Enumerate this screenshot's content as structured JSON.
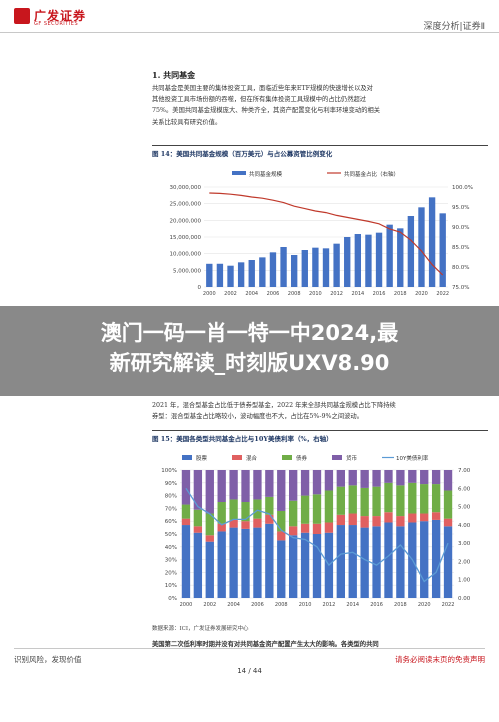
{
  "header": {
    "logo_cn": "广发证券",
    "logo_en": "GF SECURITIES",
    "report_type": "深度分析|证券Ⅱ"
  },
  "section": {
    "title": "1. 共同基金",
    "para_lines": [
      "共同基金是美国主要的集体投资工具，面临近些年来ETF规模的快速增长以及对",
      "其他投资工具市场份额的吞噬，但在所有集体投资工具规模中的占比仍然超过",
      "75%。美国共同基金规模庞大、种类齐全，其资产配置变化与利率环境变动的相关",
      "关系比较具有研究价值。"
    ]
  },
  "figure1": {
    "title": "图 14：美国共同基金规模（百万美元）与占公募资管比例变化"
  },
  "overlay": {
    "line1": "澳门一码一肖一特一中2024,最",
    "line2": "新研究解读_时刻版UXV8.90"
  },
  "mid": {
    "line1": "2021 年，混合型基金占比低于债券型基金，2022 年来全部共同基金规模占比下降持续",
    "line2": "券型：混合型基金占比略较小，波动幅度也不大，占比在5%-9%之间波动。"
  },
  "figure2": {
    "title": "图 15：美国各类型共同基金占比与10Y美债利率（%，右轴）"
  },
  "source2": "数据来源：ICI，广发证券发展研究中心",
  "bottom": {
    "line1": "美国第二次低利率时期并没有对共同基金资产配置产生太大的影响。各类型的共同",
    "line2": "基金几乎都是在各自的由基金市场发展方向，投资者偏好变化等决定的演变方向上"
  },
  "footer": {
    "left": "识别风险，发现价值",
    "right": "请务必阅读末页的免责声明",
    "page": "14 / 44"
  },
  "colors": {
    "brand_red": "#c8161d",
    "bar_blue": "#4472c4",
    "line_red": "#c0392b",
    "bond_green": "#70ad47",
    "money_purple": "#7f5fa8",
    "hybrid_red": "#e06060"
  },
  "chart_data": [
    {
      "type": "bar",
      "legend": [
        "共同基金规模",
        "共同基金占比（右轴）"
      ],
      "y_ticks": [
        "0",
        "5,000,000",
        "10,000,000",
        "15,000,000",
        "20,000,000",
        "25,000,000",
        "30,000,000"
      ],
      "y2_ticks": [
        "75.0%",
        "80.0%",
        "85.0%",
        "90.0%",
        "95.0%",
        "100.0%"
      ],
      "x_ticks": [
        "2000",
        "2002",
        "2004",
        "2006",
        "2008",
        "2010",
        "2012",
        "2014",
        "2016",
        "2018",
        "2020",
        "2022"
      ],
      "ylim": [
        0,
        30000000
      ],
      "y2lim": [
        75,
        100
      ],
      "series": [
        {
          "name": "共同基金规模",
          "values": [
            6960000,
            6970000,
            6390000,
            7400000,
            8100000,
            8890000,
            10400000,
            12000000,
            9600000,
            11100000,
            11800000,
            11600000,
            13000000,
            15000000,
            15900000,
            15700000,
            16300000,
            18700000,
            17600000,
            21300000,
            23900000,
            26900000,
            22100000
          ]
        },
        {
          "name": "共同基金占比（右轴）",
          "values": [
            98.5,
            98.4,
            98.2,
            97.9,
            97.5,
            97.2,
            96.7,
            96.1,
            95.2,
            94.6,
            94.0,
            93.6,
            92.9,
            92.4,
            91.9,
            91.4,
            90.8,
            89.5,
            88.7,
            86.7,
            84.0,
            80.6,
            78.0
          ]
        }
      ]
    },
    {
      "type": "bar",
      "legend": [
        "股票",
        "混合",
        "债券",
        "货币",
        "10Y美债利率"
      ],
      "y_ticks": [
        "0%",
        "10%",
        "20%",
        "30%",
        "40%",
        "50%",
        "60%",
        "70%",
        "80%",
        "90%",
        "100%"
      ],
      "y2_ticks": [
        "0.00",
        "1.00",
        "2.00",
        "3.00",
        "4.00",
        "5.00",
        "6.00",
        "7.00"
      ],
      "x_ticks": [
        "2000",
        "2002",
        "2004",
        "2006",
        "2008",
        "2010",
        "2012",
        "2014",
        "2016",
        "2018",
        "2020",
        "2022"
      ],
      "ylim": [
        0,
        100
      ],
      "y2lim": [
        0,
        7
      ],
      "series": [
        {
          "name": "股票",
          "values": [
            57,
            51,
            44,
            52,
            55,
            54,
            55,
            58,
            45,
            49,
            51,
            50,
            51,
            57,
            57,
            55,
            56,
            59,
            56,
            59,
            60,
            61,
            56
          ]
        },
        {
          "name": "混合",
          "values": [
            5,
            5,
            5,
            6,
            6,
            6,
            7,
            7,
            7,
            7,
            7,
            8,
            8,
            8,
            9,
            9,
            8,
            8,
            8,
            7,
            6,
            6,
            6
          ]
        },
        {
          "name": "债券",
          "values": [
            11,
            13,
            17,
            17,
            16,
            15,
            15,
            14,
            16,
            20,
            22,
            23,
            25,
            22,
            22,
            22,
            23,
            23,
            24,
            24,
            23,
            22,
            22
          ]
        },
        {
          "name": "货币",
          "values": [
            27,
            31,
            34,
            25,
            23,
            25,
            23,
            21,
            32,
            24,
            20,
            19,
            16,
            13,
            12,
            14,
            13,
            10,
            12,
            10,
            11,
            11,
            16
          ]
        },
        {
          "name": "10Y美债利率",
          "values": [
            6.0,
            5.0,
            4.6,
            4.0,
            4.3,
            4.3,
            4.8,
            4.6,
            3.7,
            3.3,
            3.2,
            2.8,
            1.8,
            2.4,
            2.5,
            2.1,
            1.8,
            2.3,
            2.9,
            2.1,
            0.9,
            1.4,
            3.0
          ]
        }
      ]
    }
  ]
}
